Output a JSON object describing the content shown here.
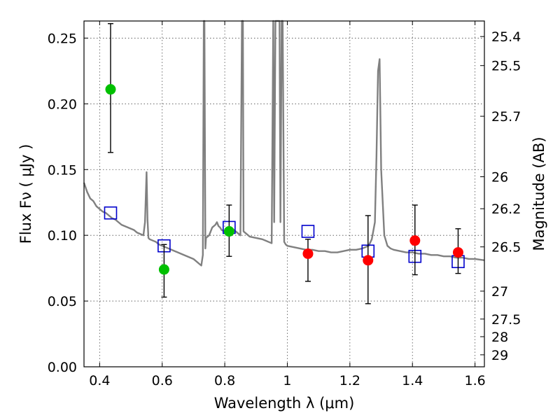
{
  "chart_data": {
    "type": "scatter",
    "xlabel": "Wavelength  λ (μm)",
    "ylabel": "Flux  Fν  ( μJy )",
    "y2label": "Magnitude (AB)",
    "xlim": [
      0.35,
      1.63
    ],
    "ylim": [
      0.0,
      0.263
    ],
    "x_ticks": [
      0.4,
      0.6,
      0.8,
      1.0,
      1.2,
      1.4,
      1.6
    ],
    "x_tick_labels": [
      "0.4",
      "0.6",
      "0.8",
      "1",
      "1.2",
      "1.4",
      "1.6"
    ],
    "y_ticks": [
      0.0,
      0.05,
      0.1,
      0.15,
      0.2,
      0.25
    ],
    "y_tick_labels": [
      "0.00",
      "0.05",
      "0.10",
      "0.15",
      "0.20",
      "0.25"
    ],
    "mag_ticks": [
      "25.4",
      "25.5",
      "25.7",
      "26",
      "26.2",
      "26.5",
      "27",
      "27.5",
      "28",
      "29"
    ],
    "grid": true,
    "colors": {
      "model": "#808080",
      "green": "#00c000",
      "red": "#ff0000",
      "model_box": "#0000cc",
      "errorbar": "#000000"
    },
    "series": [
      {
        "marker": "circle-green",
        "x": [
          0.435,
          0.606,
          0.814
        ],
        "y": [
          0.211,
          0.074,
          0.103
        ],
        "yerr_low": [
          0.163,
          0.053,
          0.084
        ],
        "yerr_high": [
          0.261,
          0.093,
          0.123
        ]
      },
      {
        "marker": "circle-red",
        "x": [
          1.066,
          1.258,
          1.408,
          1.546
        ],
        "y": [
          0.086,
          0.081,
          0.096,
          0.087
        ],
        "yerr_low": [
          0.065,
          0.048,
          0.07,
          0.071
        ],
        "yerr_high": [
          0.097,
          0.115,
          0.123,
          0.105
        ]
      },
      {
        "marker": "square-blue",
        "x": [
          0.435,
          0.606,
          0.814,
          1.066,
          1.258,
          1.408,
          1.546
        ],
        "y": [
          0.117,
          0.092,
          0.106,
          0.103,
          0.088,
          0.084,
          0.08
        ]
      }
    ],
    "model_spectrum": {
      "x": [
        0.35,
        0.36,
        0.37,
        0.38,
        0.39,
        0.4,
        0.41,
        0.42,
        0.43,
        0.44,
        0.45,
        0.46,
        0.47,
        0.48,
        0.49,
        0.5,
        0.51,
        0.52,
        0.53,
        0.54,
        0.545,
        0.55,
        0.553,
        0.556,
        0.56,
        0.57,
        0.58,
        0.59,
        0.6,
        0.62,
        0.64,
        0.66,
        0.68,
        0.7,
        0.71,
        0.72,
        0.725,
        0.73,
        0.733,
        0.735,
        0.738,
        0.74,
        0.75,
        0.76,
        0.77,
        0.775,
        0.78,
        0.785,
        0.79,
        0.8,
        0.81,
        0.82,
        0.83,
        0.84,
        0.85,
        0.855,
        0.858,
        0.86,
        0.87,
        0.88,
        0.9,
        0.92,
        0.94,
        0.95,
        0.955,
        0.958,
        0.962,
        0.966,
        0.97,
        0.975,
        0.978,
        0.982,
        0.985,
        0.99,
        0.995,
        1.0,
        1.02,
        1.04,
        1.06,
        1.08,
        1.1,
        1.12,
        1.14,
        1.16,
        1.18,
        1.2,
        1.22,
        1.24,
        1.26,
        1.27,
        1.28,
        1.285,
        1.29,
        1.295,
        1.3,
        1.31,
        1.32,
        1.33,
        1.34,
        1.36,
        1.38,
        1.4,
        1.42,
        1.44,
        1.46,
        1.48,
        1.5,
        1.52,
        1.54,
        1.56,
        1.58,
        1.6,
        1.63
      ],
      "y": [
        0.14,
        0.133,
        0.128,
        0.126,
        0.122,
        0.12,
        0.118,
        0.117,
        0.115,
        0.113,
        0.112,
        0.11,
        0.108,
        0.107,
        0.106,
        0.105,
        0.104,
        0.102,
        0.101,
        0.1,
        0.11,
        0.148,
        0.112,
        0.098,
        0.097,
        0.096,
        0.095,
        0.093,
        0.092,
        0.09,
        0.088,
        0.086,
        0.084,
        0.082,
        0.08,
        0.078,
        0.077,
        0.085,
        0.263,
        0.263,
        0.09,
        0.098,
        0.1,
        0.106,
        0.108,
        0.11,
        0.107,
        0.106,
        0.104,
        0.103,
        0.105,
        0.106,
        0.104,
        0.102,
        0.1,
        0.263,
        0.263,
        0.103,
        0.101,
        0.099,
        0.098,
        0.097,
        0.095,
        0.094,
        0.263,
        0.11,
        0.263,
        0.263,
        0.263,
        0.263,
        0.11,
        0.263,
        0.263,
        0.095,
        0.093,
        0.092,
        0.091,
        0.09,
        0.089,
        0.089,
        0.088,
        0.088,
        0.087,
        0.087,
        0.088,
        0.089,
        0.089,
        0.09,
        0.092,
        0.097,
        0.11,
        0.16,
        0.225,
        0.234,
        0.15,
        0.1,
        0.092,
        0.09,
        0.089,
        0.088,
        0.087,
        0.087,
        0.086,
        0.086,
        0.085,
        0.085,
        0.084,
        0.084,
        0.083,
        0.083,
        0.082,
        0.082,
        0.081
      ]
    }
  }
}
